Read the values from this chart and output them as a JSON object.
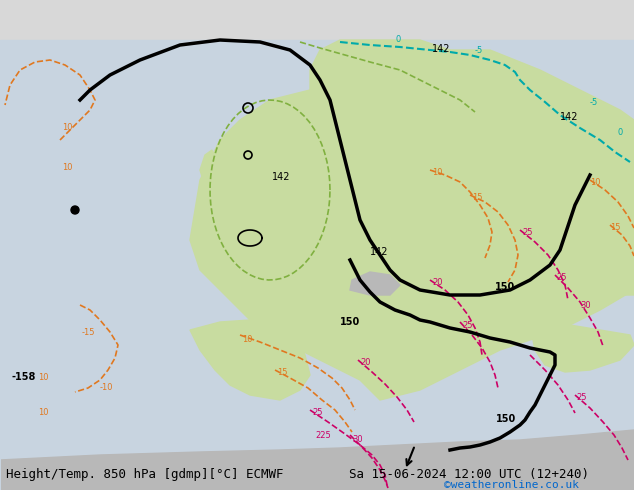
{
  "title_left": "Height/Temp. 850 hPa [gdmp][°C] ECMWF",
  "title_right": "Sa 15-06-2024 12:00 UTC (12+240)",
  "credit": "©weatheronline.co.uk",
  "background_color": "#e8e8e8",
  "map_bg_color": "#d0d8e8",
  "land_color": "#c8dca0",
  "gray_land_color": "#b0b0b0",
  "title_fontsize": 9,
  "credit_fontsize": 8,
  "credit_color": "#0066cc"
}
